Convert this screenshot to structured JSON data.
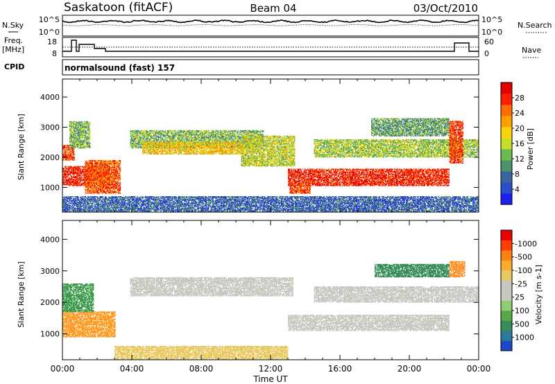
{
  "header": {
    "station": "Saskatoon (fitACF)",
    "beam": "Beam 04",
    "date": "03/Oct/2010"
  },
  "noise_panel": {
    "left_label": "N.Sky",
    "right_label": "N.Search",
    "left_ticks": [
      "10^5",
      "10^0"
    ],
    "right_ticks": [
      "10^5",
      "10^0"
    ]
  },
  "freq_panel": {
    "left_label_1": "Freq.",
    "left_label_2": "[MHz]",
    "right_label": "Nave",
    "left_ticks": [
      "18",
      "8"
    ],
    "right_ticks": [
      "60",
      "0"
    ]
  },
  "cpid": {
    "label": "CPID",
    "program": "normalsound (fast) 157"
  },
  "chart_data": [
    {
      "type": "heatmap",
      "name": "power",
      "ylabel": "Slant Range [km]",
      "yticks": [
        1000,
        2000,
        3000,
        4000
      ],
      "ylim": [
        180,
        4600
      ],
      "xlim": [
        0,
        24
      ],
      "colorbar": {
        "label": "Power [dB]",
        "ticks": [
          "4",
          "8",
          "12",
          "16",
          "20",
          "24",
          "28"
        ],
        "colors": [
          "#1e1ef0",
          "#2850c8",
          "#3c64a0",
          "#4c9468",
          "#6cbc4c",
          "#c8dc2c",
          "#fcd20a",
          "#ffa000",
          "#ff6c00",
          "#ff1e00",
          "#e40000"
        ]
      },
      "bands": [
        {
          "t0": 0.0,
          "t1": 2.7,
          "r0": 1050,
          "r1": 1700,
          "level": 0.9
        },
        {
          "t0": 0.0,
          "t1": 0.7,
          "r0": 1900,
          "r1": 2400,
          "level": 0.85
        },
        {
          "t0": 1.3,
          "t1": 3.3,
          "r0": 800,
          "r1": 1900,
          "level": 0.8
        },
        {
          "t0": 0.4,
          "t1": 1.6,
          "r0": 2300,
          "r1": 3200,
          "level": 0.4
        },
        {
          "t0": 3.9,
          "t1": 11.6,
          "r0": 2300,
          "r1": 2900,
          "level": 0.4
        },
        {
          "t0": 4.6,
          "t1": 10.4,
          "r0": 2100,
          "r1": 2500,
          "level": 0.6
        },
        {
          "t0": 10.3,
          "t1": 13.4,
          "r0": 1700,
          "r1": 2700,
          "level": 0.5
        },
        {
          "t0": 13.0,
          "t1": 22.3,
          "r0": 1050,
          "r1": 1600,
          "level": 0.9
        },
        {
          "t0": 13.1,
          "t1": 14.3,
          "r0": 800,
          "r1": 1100,
          "level": 0.85
        },
        {
          "t0": 14.5,
          "t1": 24.0,
          "r0": 2000,
          "r1": 2600,
          "level": 0.45
        },
        {
          "t0": 17.8,
          "t1": 22.3,
          "r0": 2700,
          "r1": 3300,
          "level": 0.35
        },
        {
          "t0": 22.3,
          "t1": 23.1,
          "r0": 1800,
          "r1": 3200,
          "level": 0.85
        },
        {
          "t0": 0.0,
          "t1": 24.0,
          "r0": 200,
          "r1": 700,
          "level": 0.2
        }
      ]
    },
    {
      "type": "heatmap",
      "name": "velocity",
      "ylabel": "Slant Range [km]",
      "yticks": [
        1000,
        2000,
        3000,
        4000
      ],
      "ylim": [
        180,
        4600
      ],
      "xlim": [
        0,
        24
      ],
      "colorbar": {
        "label": "Velocity [m s-1]",
        "ticks": [
          "1000",
          "500",
          "100",
          "25",
          "-25",
          "-100",
          "-500",
          "-1000"
        ],
        "colors": [
          "#1e46c8",
          "#2a7a9c",
          "#388c5a",
          "#58a84a",
          "#90cc70",
          "#c8c8c0",
          "#c8c8c0",
          "#e8c860",
          "#ffaa30",
          "#ff8010",
          "#ff4000",
          "#e80000"
        ]
      },
      "bands": [
        {
          "t0": 0.0,
          "t1": 3.0,
          "r0": 900,
          "r1": 1700,
          "color": "#ff9a20"
        },
        {
          "t0": 0.0,
          "t1": 1.8,
          "r0": 1700,
          "r1": 2600,
          "color": "#3c9c4c"
        },
        {
          "t0": 3.9,
          "t1": 13.3,
          "r0": 2200,
          "r1": 2800,
          "color": "#c8c8c0"
        },
        {
          "t0": 13.0,
          "t1": 22.3,
          "r0": 1100,
          "r1": 1600,
          "color": "#c8c8c0"
        },
        {
          "t0": 14.5,
          "t1": 24.0,
          "r0": 2000,
          "r1": 2500,
          "color": "#c8c8c0"
        },
        {
          "t0": 18.0,
          "t1": 22.3,
          "r0": 2800,
          "r1": 3200,
          "color": "#388c5a"
        },
        {
          "t0": 22.3,
          "t1": 23.2,
          "r0": 2800,
          "r1": 3300,
          "color": "#ff8c20"
        },
        {
          "t0": 3.0,
          "t1": 13.0,
          "r0": 200,
          "r1": 600,
          "color": "#e8c860"
        }
      ]
    }
  ],
  "x_axis": {
    "ticks": [
      "00:00",
      "04:00",
      "08:00",
      "12:00",
      "16:00",
      "20:00",
      "00:00"
    ],
    "label": "Time UT"
  }
}
